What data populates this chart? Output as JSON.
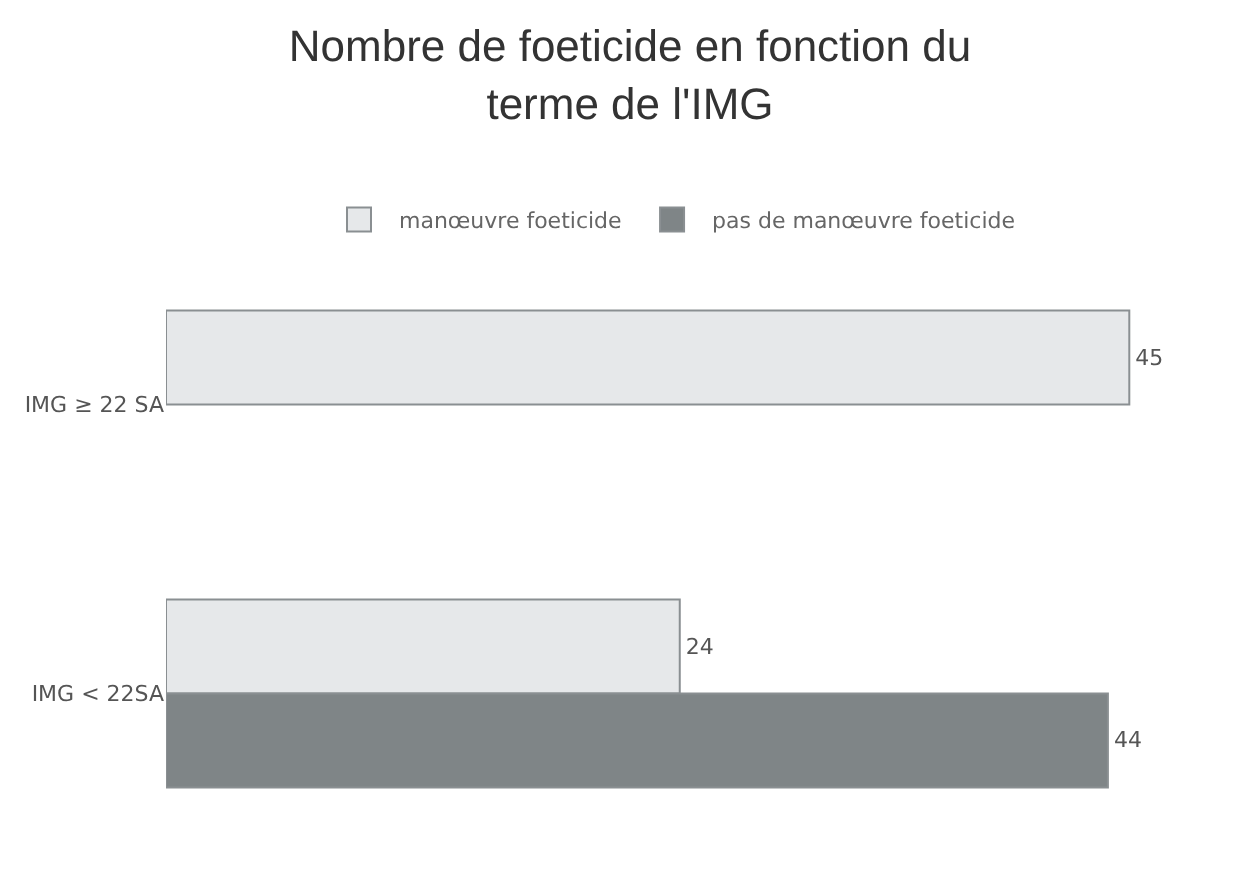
{
  "chart_data": {
    "type": "bar",
    "orientation": "horizontal",
    "title": "Nombre de foeticide en fonction du terme de l'IMG",
    "categories": [
      "IMG ≥ 22 SA",
      "IMG < 22SA"
    ],
    "series": [
      {
        "name": "manœuvre foeticide",
        "color": "#e6e8ea",
        "values": [
          45,
          24
        ]
      },
      {
        "name": "pas de manœuvre foeticide",
        "color": "#7f8587",
        "values": [
          null,
          44
        ]
      }
    ],
    "data_labels": true,
    "legend": "top",
    "tick_labels": "y"
  }
}
